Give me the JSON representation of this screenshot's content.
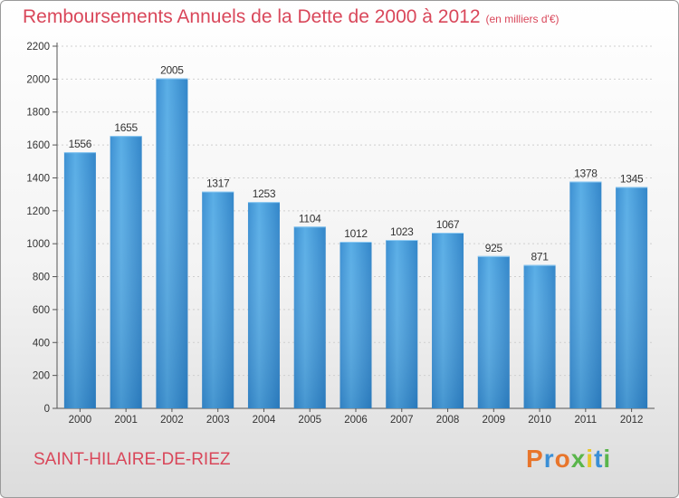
{
  "title": "Remboursements Annuels de la Dette de 2000 à 2012",
  "subtitle": "(en milliers d'€)",
  "location": "SAINT-HILAIRE-DE-RIEZ",
  "logo": {
    "text": "Proxiti",
    "letter_colors": [
      "#e8752b",
      "#3a8fd6",
      "#e8752b",
      "#5ab54b",
      "#e8c62b",
      "#3a8fd6",
      "#5ab54b"
    ]
  },
  "colors": {
    "bar": "#4a9fdc",
    "bar_light": "#6cb8ec",
    "bar_dark": "#2f7fc1",
    "title": "#d9475a",
    "axis": "#333333"
  },
  "chart_data": {
    "type": "bar",
    "categories": [
      "2000",
      "2001",
      "2002",
      "2003",
      "2004",
      "2005",
      "2006",
      "2007",
      "2008",
      "2009",
      "2010",
      "2011",
      "2012"
    ],
    "values": [
      1556,
      1655,
      2005,
      1317,
      1253,
      1104,
      1012,
      1023,
      1067,
      925,
      871,
      1378,
      1345
    ],
    "data_labels": [
      "1556",
      "1655",
      "2005",
      "1317",
      "1253",
      "1104",
      "1012",
      "1023",
      "1067",
      "925",
      "871",
      "1378",
      "1345"
    ],
    "y_ticks": [
      0,
      200,
      400,
      600,
      800,
      1000,
      1200,
      1400,
      1600,
      1800,
      2000,
      2200
    ],
    "ylim": [
      0,
      2200
    ],
    "grid": true
  }
}
